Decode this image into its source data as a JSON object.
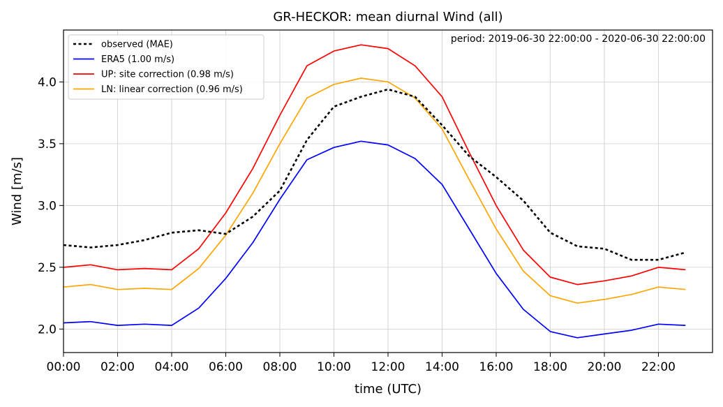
{
  "chart_data": {
    "type": "line",
    "title": "GR-HECKOR: mean diurnal Wind (all)",
    "annotation": "period: 2019-06-30 22:00:00 - 2020-06-30 22:00:00",
    "xlabel": "time (UTC)",
    "ylabel": "Wind [m/s]",
    "x": [
      0,
      1,
      2,
      3,
      4,
      5,
      6,
      7,
      8,
      9,
      10,
      11,
      12,
      13,
      14,
      15,
      16,
      17,
      18,
      19,
      20,
      21,
      22,
      23
    ],
    "xlim": [
      0,
      24
    ],
    "ylim": [
      1.81,
      4.42
    ],
    "x_ticks": [
      {
        "value": 0,
        "label": "00:00"
      },
      {
        "value": 2,
        "label": "02:00"
      },
      {
        "value": 4,
        "label": "04:00"
      },
      {
        "value": 6,
        "label": "06:00"
      },
      {
        "value": 8,
        "label": "08:00"
      },
      {
        "value": 10,
        "label": "10:00"
      },
      {
        "value": 12,
        "label": "12:00"
      },
      {
        "value": 14,
        "label": "14:00"
      },
      {
        "value": 16,
        "label": "16:00"
      },
      {
        "value": 18,
        "label": "18:00"
      },
      {
        "value": 20,
        "label": "20:00"
      },
      {
        "value": 22,
        "label": "22:00"
      }
    ],
    "y_ticks": [
      {
        "value": 2.0,
        "label": "2.0"
      },
      {
        "value": 2.5,
        "label": "2.5"
      },
      {
        "value": 3.0,
        "label": "3.0"
      },
      {
        "value": 3.5,
        "label": "3.5"
      },
      {
        "value": 4.0,
        "label": "4.0"
      }
    ],
    "grid": true,
    "legend_position": "top-left",
    "series": [
      {
        "name": "observed (MAE)",
        "color": "#000000",
        "dashed": true,
        "values": [
          2.68,
          2.66,
          2.68,
          2.72,
          2.78,
          2.8,
          2.77,
          2.91,
          3.12,
          3.53,
          3.8,
          3.88,
          3.94,
          3.88,
          3.65,
          3.4,
          3.23,
          3.04,
          2.78,
          2.67,
          2.65,
          2.56,
          2.56,
          2.62
        ]
      },
      {
        "name": "ERA5 (1.00 m/s)",
        "color": "#0000ff",
        "dashed": false,
        "values": [
          2.05,
          2.06,
          2.03,
          2.04,
          2.03,
          2.17,
          2.41,
          2.7,
          3.05,
          3.37,
          3.47,
          3.52,
          3.49,
          3.38,
          3.17,
          2.81,
          2.45,
          2.16,
          1.98,
          1.93,
          1.96,
          1.99,
          2.04,
          2.03
        ]
      },
      {
        "name": "UP: site correction (0.98 m/s)",
        "color": "#ff0000",
        "dashed": false,
        "values": [
          2.5,
          2.52,
          2.48,
          2.49,
          2.48,
          2.65,
          2.94,
          3.3,
          3.73,
          4.13,
          4.25,
          4.3,
          4.27,
          4.13,
          3.88,
          3.43,
          3.0,
          2.64,
          2.42,
          2.36,
          2.39,
          2.43,
          2.5,
          2.48
        ]
      },
      {
        "name": "LN: linear correction (0.96 m/s)",
        "color": "#ffa500",
        "dashed": false,
        "values": [
          2.34,
          2.36,
          2.32,
          2.33,
          2.32,
          2.49,
          2.76,
          3.1,
          3.5,
          3.87,
          3.98,
          4.03,
          4.0,
          3.87,
          3.62,
          3.21,
          2.81,
          2.47,
          2.27,
          2.21,
          2.24,
          2.28,
          2.34,
          2.32
        ]
      }
    ]
  }
}
